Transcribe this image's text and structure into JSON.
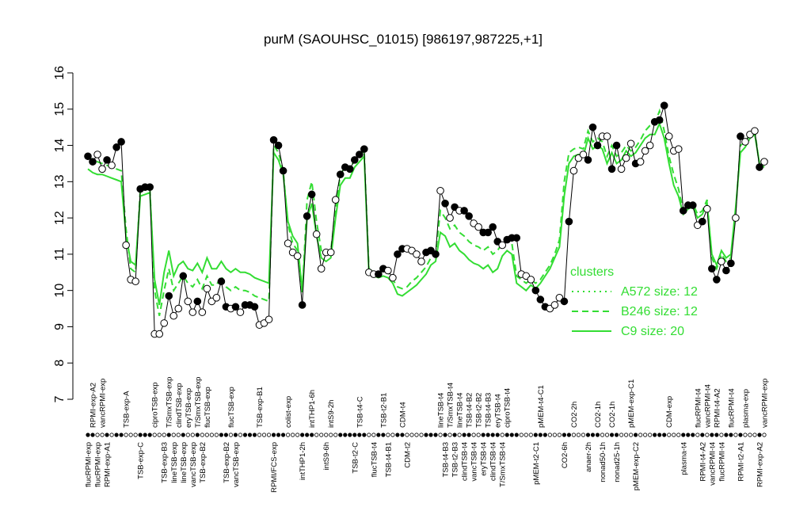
{
  "chart_data": {
    "type": "line",
    "title": "purM (SAOUHSC_01015) [986197,987225,+1]",
    "xlabel": "",
    "ylabel": "",
    "ylim": [
      7,
      16
    ],
    "yticks": [
      7,
      8,
      9,
      10,
      11,
      12,
      13,
      14,
      15,
      16
    ],
    "legend": {
      "title": "clusters",
      "position": "right",
      "entries": [
        {
          "label": "A572 size: 12",
          "style": "dotted"
        },
        {
          "label": "B246 size: 12",
          "style": "dashed"
        },
        {
          "label": "C9 size: 20",
          "style": "solid"
        }
      ]
    },
    "colors": {
      "clusters": "#33dd33",
      "expression": "#000000"
    },
    "samples": [
      {
        "label": "flucRPMI-exp",
        "value": 13.7,
        "filled": true
      },
      {
        "label": "RPMI-exp-A2",
        "value": 13.55,
        "filled": true
      },
      {
        "label": "flucRPMI-exp",
        "value": 13.75,
        "filled": false
      },
      {
        "label": "vancRPMI-exp",
        "value": 13.35,
        "filled": false
      },
      {
        "label": "RPMI-exp-A1",
        "value": 13.6,
        "filled": true
      },
      {
        "label": "",
        "value": 13.45,
        "filled": false
      },
      {
        "label": "",
        "value": 13.95,
        "filled": true
      },
      {
        "label": "",
        "value": 14.1,
        "filled": true
      },
      {
        "label": "TSB-exp-A",
        "value": 11.25,
        "filled": false
      },
      {
        "label": "",
        "value": 10.3,
        "filled": false
      },
      {
        "label": "",
        "value": 10.25,
        "filled": false
      },
      {
        "label": "TSB-exp-C",
        "value": 12.8,
        "filled": true
      },
      {
        "label": "",
        "value": 12.85,
        "filled": true
      },
      {
        "label": "",
        "value": 12.85,
        "filled": true
      },
      {
        "label": "ciproTSB-exp",
        "value": 8.8,
        "filled": false
      },
      {
        "label": "",
        "value": 8.8,
        "filled": false
      },
      {
        "label": "TSB-exp-B3",
        "value": 9.1,
        "filled": false
      },
      {
        "label": "T/SmxTSB-exp",
        "value": 9.85,
        "filled": true
      },
      {
        "label": "lineTSB-exp",
        "value": 9.3,
        "filled": false
      },
      {
        "label": "clindTSB-exp",
        "value": 9.5,
        "filled": false
      },
      {
        "label": "lineTSB-exp",
        "value": 10.4,
        "filled": true
      },
      {
        "label": "eryTSB-exp",
        "value": 9.7,
        "filled": false
      },
      {
        "label": "vancTSB-exp",
        "value": 9.4,
        "filled": false
      },
      {
        "label": "T/SmxTSB-exp",
        "value": 9.7,
        "filled": true
      },
      {
        "label": "TSB-exp-B2",
        "value": 9.4,
        "filled": false
      },
      {
        "label": "flucTSB-exp",
        "value": 10.05,
        "filled": false
      },
      {
        "label": "",
        "value": 9.7,
        "filled": false
      },
      {
        "label": "",
        "value": 9.8,
        "filled": false
      },
      {
        "label": "",
        "value": 10.25,
        "filled": true
      },
      {
        "label": "TSB-exp-B2",
        "value": 9.55,
        "filled": true
      },
      {
        "label": "flucTSB-exp",
        "value": 9.5,
        "filled": false
      },
      {
        "label": "vancTSB-exp",
        "value": 9.55,
        "filled": true
      },
      {
        "label": "",
        "value": 9.4,
        "filled": false
      },
      {
        "label": "",
        "value": 9.6,
        "filled": true
      },
      {
        "label": "",
        "value": 9.6,
        "filled": true
      },
      {
        "label": "",
        "value": 9.55,
        "filled": true
      },
      {
        "label": "TSB-exp-B1",
        "value": 9.05,
        "filled": false
      },
      {
        "label": "",
        "value": 9.1,
        "filled": false
      },
      {
        "label": "",
        "value": 9.2,
        "filled": false
      },
      {
        "label": "RPMI/FCS-exp",
        "value": 14.15,
        "filled": true
      },
      {
        "label": "",
        "value": 14.0,
        "filled": true
      },
      {
        "label": "",
        "value": 13.3,
        "filled": true
      },
      {
        "label": "colist-exp",
        "value": 11.3,
        "filled": false
      },
      {
        "label": "",
        "value": 11.05,
        "filled": false
      },
      {
        "label": "",
        "value": 10.95,
        "filled": false
      },
      {
        "label": "intTHP1-2h",
        "value": 9.6,
        "filled": true
      },
      {
        "label": "",
        "value": 12.05,
        "filled": true
      },
      {
        "label": "intTHP1-6h",
        "value": 12.65,
        "filled": true
      },
      {
        "label": "",
        "value": 11.55,
        "filled": false
      },
      {
        "label": "",
        "value": 10.6,
        "filled": false
      },
      {
        "label": "intS9-6h",
        "value": 11.05,
        "filled": false
      },
      {
        "label": "intS9-2h",
        "value": 11.05,
        "filled": false
      },
      {
        "label": "",
        "value": 12.5,
        "filled": false
      },
      {
        "label": "",
        "value": 13.2,
        "filled": true
      },
      {
        "label": "",
        "value": 13.4,
        "filled": true
      },
      {
        "label": "",
        "value": 13.35,
        "filled": true
      },
      {
        "label": "TSB-t2-C",
        "value": 13.6,
        "filled": true
      },
      {
        "label": "TSB-t4-C",
        "value": 13.75,
        "filled": true
      },
      {
        "label": "",
        "value": 13.9,
        "filled": true
      },
      {
        "label": "",
        "value": 10.5,
        "filled": false
      },
      {
        "label": "flucTSB-t4",
        "value": 10.45,
        "filled": false
      },
      {
        "label": "",
        "value": 10.45,
        "filled": true
      },
      {
        "label": "TSB-t2-B1",
        "value": 10.6,
        "filled": true
      },
      {
        "label": "TSB-t4-B1",
        "value": 10.55,
        "filled": false
      },
      {
        "label": "",
        "value": 10.35,
        "filled": false
      },
      {
        "label": "",
        "value": 11.0,
        "filled": true
      },
      {
        "label": "CDM-t4",
        "value": 11.15,
        "filled": true
      },
      {
        "label": "CDM-t2",
        "value": 11.15,
        "filled": false
      },
      {
        "label": "",
        "value": 11.1,
        "filled": false
      },
      {
        "label": "",
        "value": 11.0,
        "filled": false
      },
      {
        "label": "",
        "value": 10.8,
        "filled": false
      },
      {
        "label": "",
        "value": 11.05,
        "filled": true
      },
      {
        "label": "",
        "value": 11.1,
        "filled": true
      },
      {
        "label": "",
        "value": 11.0,
        "filled": true
      },
      {
        "label": "lineTSB-t4",
        "value": 12.75,
        "filled": false
      },
      {
        "label": "TSB-t4-B3",
        "value": 12.4,
        "filled": true
      },
      {
        "label": "T/SmxTSB-t4",
        "value": 12.0,
        "filled": false
      },
      {
        "label": "TSB-t2-B3",
        "value": 12.3,
        "filled": true
      },
      {
        "label": "lineTSB-t4",
        "value": 12.2,
        "filled": false
      },
      {
        "label": "clindTSB-t4",
        "value": 12.2,
        "filled": true
      },
      {
        "label": "TSB-t4-B2",
        "value": 12.05,
        "filled": true
      },
      {
        "label": "vancTSB-t4",
        "value": 11.85,
        "filled": false
      },
      {
        "label": "TSB-t2-B2",
        "value": 11.75,
        "filled": false
      },
      {
        "label": "eryTSB-t4",
        "value": 11.6,
        "filled": true
      },
      {
        "label": "TSB-t4-B3",
        "value": 11.6,
        "filled": true
      },
      {
        "label": "clindTSB-t4",
        "value": 11.75,
        "filled": true
      },
      {
        "label": "eryTSB-t4",
        "value": 11.35,
        "filled": true
      },
      {
        "label": "T/SmxTSB-t4",
        "value": 11.25,
        "filled": false
      },
      {
        "label": "ciproTSB-t4",
        "value": 11.4,
        "filled": true
      },
      {
        "label": "",
        "value": 11.45,
        "filled": true
      },
      {
        "label": "",
        "value": 11.45,
        "filled": true
      },
      {
        "label": "",
        "value": 10.45,
        "filled": false
      },
      {
        "label": "",
        "value": 10.4,
        "filled": false
      },
      {
        "label": "",
        "value": 10.3,
        "filled": false
      },
      {
        "label": "pMEM-t2-C1",
        "value": 10.0,
        "filled": true
      },
      {
        "label": "pMEM-t4-C1",
        "value": 9.75,
        "filled": true
      },
      {
        "label": "",
        "value": 9.55,
        "filled": true
      },
      {
        "label": "",
        "value": 9.5,
        "filled": false
      },
      {
        "label": "",
        "value": 9.6,
        "filled": false
      },
      {
        "label": "",
        "value": 9.8,
        "filled": false
      },
      {
        "label": "CO2-6h",
        "value": 9.7,
        "filled": true
      },
      {
        "label": "",
        "value": 11.9,
        "filled": true
      },
      {
        "label": "CO2-2h",
        "value": 13.3,
        "filled": false
      },
      {
        "label": "",
        "value": 13.65,
        "filled": false
      },
      {
        "label": "",
        "value": 13.75,
        "filled": false
      },
      {
        "label": "anaer-2h",
        "value": 13.6,
        "filled": true
      },
      {
        "label": "",
        "value": 14.5,
        "filled": true
      },
      {
        "label": "CO2-1h",
        "value": 14.0,
        "filled": true
      },
      {
        "label": "nonad50-1h",
        "value": 14.25,
        "filled": false
      },
      {
        "label": "",
        "value": 14.25,
        "filled": false
      },
      {
        "label": "CO2-1h",
        "value": 13.35,
        "filled": true
      },
      {
        "label": "nonad25-1h",
        "value": 14.0,
        "filled": true
      },
      {
        "label": "",
        "value": 13.35,
        "filled": false
      },
      {
        "label": "",
        "value": 13.65,
        "filled": false
      },
      {
        "label": "pMEM-exp-C1",
        "value": 14.05,
        "filled": false
      },
      {
        "label": "pMEM-exp-C2",
        "value": 13.5,
        "filled": true
      },
      {
        "label": "",
        "value": 13.55,
        "filled": false
      },
      {
        "label": "",
        "value": 13.85,
        "filled": false
      },
      {
        "label": "",
        "value": 14.0,
        "filled": false
      },
      {
        "label": "",
        "value": 14.65,
        "filled": true
      },
      {
        "label": "",
        "value": 14.7,
        "filled": true
      },
      {
        "label": "",
        "value": 15.1,
        "filled": true
      },
      {
        "label": "CDM-exp",
        "value": 14.25,
        "filled": false
      },
      {
        "label": "",
        "value": 13.85,
        "filled": false
      },
      {
        "label": "",
        "value": 13.9,
        "filled": false
      },
      {
        "label": "plasma-t4",
        "value": 12.2,
        "filled": true
      },
      {
        "label": "",
        "value": 12.35,
        "filled": true
      },
      {
        "label": "",
        "value": 12.35,
        "filled": true
      },
      {
        "label": "flucRPMI-t4",
        "value": 11.8,
        "filled": false
      },
      {
        "label": "RPMI-t4-A2",
        "value": 11.9,
        "filled": true
      },
      {
        "label": "vancRPMI-t4",
        "value": 12.25,
        "filled": false
      },
      {
        "label": "vancRPMI-t4",
        "value": 10.6,
        "filled": true
      },
      {
        "label": "RPMI-t4-A2",
        "value": 10.3,
        "filled": true
      },
      {
        "label": "flucRPMI-t4",
        "value": 10.8,
        "filled": false
      },
      {
        "label": "",
        "value": 10.55,
        "filled": true
      },
      {
        "label": "flucRPMI-t4",
        "value": 10.75,
        "filled": true
      },
      {
        "label": "",
        "value": 12.0,
        "filled": false
      },
      {
        "label": "RPMI-t2-A1",
        "value": 14.25,
        "filled": true
      },
      {
        "label": "plasma-exp",
        "value": 14.1,
        "filled": false
      },
      {
        "label": "",
        "value": 14.3,
        "filled": false
      },
      {
        "label": "",
        "value": 14.4,
        "filled": false
      },
      {
        "label": "RPMI-exp-A2",
        "value": 13.4,
        "filled": true
      },
      {
        "label": "vancRPMI-exp",
        "value": 13.55,
        "filled": false
      }
    ],
    "series": [
      {
        "name": "C9 size: 20",
        "style": "solid",
        "values": [
          13.35,
          13.25,
          13.2,
          13.2,
          13.15,
          13.1,
          13.05,
          13.0,
          11.5,
          10.8,
          10.7,
          12.6,
          12.65,
          12.7,
          10.3,
          9.6,
          10.5,
          11.1,
          10.4,
          10.7,
          10.8,
          10.6,
          10.55,
          10.75,
          10.5,
          10.9,
          10.6,
          10.6,
          10.8,
          10.6,
          10.5,
          10.6,
          10.5,
          10.5,
          10.45,
          10.35,
          10.3,
          10.25,
          10.2,
          13.8,
          13.6,
          13.2,
          11.9,
          11.5,
          11.3,
          10.0,
          12.0,
          12.4,
          11.5,
          10.9,
          10.8,
          10.9,
          12.0,
          12.9,
          13.1,
          13.1,
          13.4,
          13.55,
          13.7,
          10.5,
          10.4,
          10.35,
          10.4,
          10.35,
          10.2,
          9.9,
          9.85,
          9.95,
          10.05,
          10.15,
          10.3,
          10.45,
          10.7,
          10.8,
          11.6,
          11.5,
          11.2,
          11.3,
          11.1,
          11.0,
          10.85,
          10.75,
          10.7,
          10.6,
          10.7,
          10.5,
          10.6,
          10.95,
          11.1,
          11.0,
          10.2,
          10.1,
          10.0,
          10.15,
          10.05,
          10.2,
          10.4,
          10.6,
          10.9,
          11.2,
          12.6,
          13.5,
          13.7,
          13.75,
          13.7,
          14.2,
          13.9,
          14.0,
          13.9,
          13.5,
          13.8,
          13.5,
          13.6,
          13.85,
          13.7,
          13.8,
          14.0,
          14.2,
          14.3,
          14.3,
          14.6,
          14.2,
          13.5,
          12.9,
          12.6,
          12.1,
          12.25,
          12.3,
          12.0,
          12.1,
          12.4,
          11.0,
          10.7,
          11.1,
          10.9,
          11.0,
          12.3,
          13.8,
          13.95,
          14.2,
          14.3,
          13.5,
          13.4
        ]
      },
      {
        "name": "B246 size: 12",
        "style": "dashed",
        "values": [
          13.7,
          13.6,
          13.55,
          13.5,
          13.45,
          13.4,
          13.35,
          13.3,
          11.7,
          10.6,
          10.5,
          12.8,
          12.85,
          12.85,
          10.0,
          9.3,
          10.0,
          10.6,
          10.0,
          10.2,
          10.4,
          10.2,
          10.1,
          10.3,
          10.05,
          10.4,
          10.15,
          10.15,
          10.4,
          10.1,
          10.0,
          10.1,
          10.0,
          10.0,
          9.95,
          9.85,
          9.8,
          9.75,
          9.7,
          14.0,
          13.8,
          13.3,
          11.8,
          11.3,
          11.1,
          9.9,
          12.5,
          13.0,
          11.9,
          11.1,
          11.0,
          11.1,
          12.2,
          13.2,
          13.4,
          13.35,
          13.6,
          13.7,
          13.85,
          10.6,
          10.5,
          10.45,
          10.55,
          10.5,
          10.3,
          10.1,
          10.05,
          10.1,
          10.25,
          10.35,
          10.5,
          10.65,
          10.9,
          11.0,
          12.2,
          12.0,
          11.7,
          11.8,
          11.6,
          11.5,
          11.35,
          11.25,
          11.2,
          11.1,
          11.2,
          11.0,
          11.1,
          11.3,
          11.4,
          11.3,
          10.4,
          10.3,
          10.2,
          10.3,
          10.2,
          10.3,
          10.5,
          10.7,
          11.0,
          11.4,
          13.0,
          13.8,
          13.9,
          13.95,
          13.9,
          14.4,
          14.1,
          14.2,
          14.1,
          13.7,
          14.0,
          13.7,
          13.8,
          14.0,
          13.85,
          13.95,
          14.15,
          14.4,
          14.55,
          14.6,
          14.95,
          14.4,
          13.7,
          13.2,
          12.8,
          12.2,
          12.35,
          12.4,
          12.1,
          12.2,
          12.5,
          10.9,
          10.6,
          11.0,
          10.8,
          10.9,
          12.2,
          14.0,
          14.1,
          14.3,
          14.4,
          13.45,
          13.4
        ]
      }
    ]
  }
}
